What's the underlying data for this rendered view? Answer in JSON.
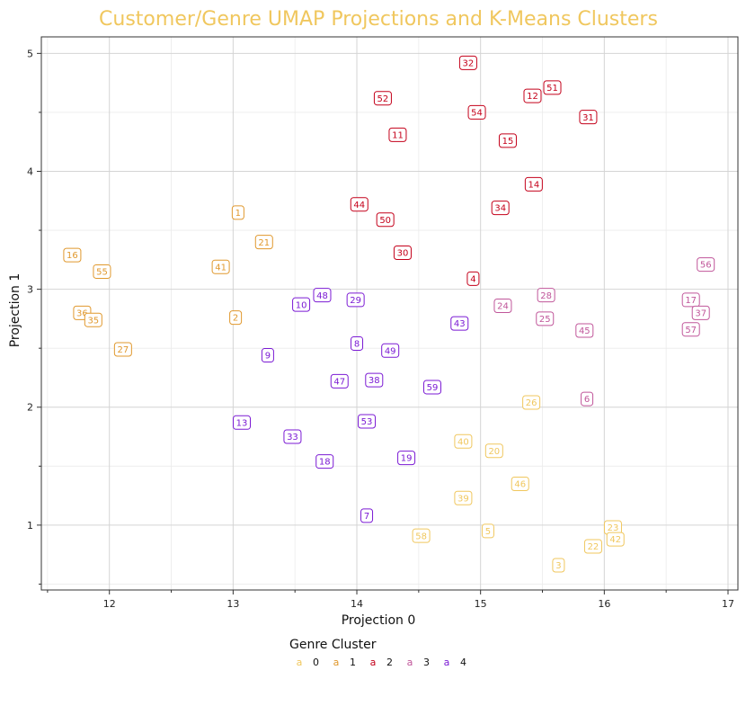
{
  "chart_data": {
    "type": "scatter",
    "title": "Customer/Genre UMAP Projections and K-Means Clusters",
    "xlabel": "Projection 0",
    "ylabel": "Projection 1",
    "xlim": [
      11.45,
      17.08
    ],
    "ylim": [
      0.45,
      5.14
    ],
    "xticks": [
      12,
      13,
      14,
      15,
      16,
      17
    ],
    "yticks": [
      1,
      2,
      3,
      4,
      5
    ],
    "xtick_labels": [
      "12",
      "13",
      "14",
      "15",
      "16",
      "17"
    ],
    "ytick_labels": [
      "1",
      "2",
      "3",
      "4",
      "5"
    ],
    "grid": true,
    "legend": {
      "title": "Genre Cluster",
      "position": "bottom",
      "marker_text": "a",
      "entries": [
        {
          "cluster": 0,
          "label": "0",
          "color": "#f0c75e"
        },
        {
          "cluster": 1,
          "label": "1",
          "color": "#e0982d"
        },
        {
          "cluster": 2,
          "label": "2",
          "color": "#c4001a"
        },
        {
          "cluster": 3,
          "label": "3",
          "color": "#c0569a"
        },
        {
          "cluster": 4,
          "label": "4",
          "color": "#7b1ad4"
        }
      ]
    },
    "points": [
      {
        "label": "32",
        "x": 14.9,
        "y": 4.92,
        "cluster": 2
      },
      {
        "label": "51",
        "x": 15.58,
        "y": 4.71,
        "cluster": 2
      },
      {
        "label": "12",
        "x": 15.42,
        "y": 4.64,
        "cluster": 2
      },
      {
        "label": "52",
        "x": 14.21,
        "y": 4.62,
        "cluster": 2
      },
      {
        "label": "54",
        "x": 14.97,
        "y": 4.5,
        "cluster": 2
      },
      {
        "label": "31",
        "x": 15.87,
        "y": 4.46,
        "cluster": 2
      },
      {
        "label": "11",
        "x": 14.33,
        "y": 4.31,
        "cluster": 2
      },
      {
        "label": "15",
        "x": 15.22,
        "y": 4.26,
        "cluster": 2
      },
      {
        "label": "14",
        "x": 15.43,
        "y": 3.89,
        "cluster": 2
      },
      {
        "label": "44",
        "x": 14.02,
        "y": 3.72,
        "cluster": 2
      },
      {
        "label": "34",
        "x": 15.16,
        "y": 3.69,
        "cluster": 2
      },
      {
        "label": "50",
        "x": 14.23,
        "y": 3.59,
        "cluster": 2
      },
      {
        "label": "30",
        "x": 14.37,
        "y": 3.31,
        "cluster": 2
      },
      {
        "label": "4",
        "x": 14.94,
        "y": 3.09,
        "cluster": 2
      },
      {
        "label": "1",
        "x": 13.04,
        "y": 3.65,
        "cluster": 1
      },
      {
        "label": "21",
        "x": 13.25,
        "y": 3.4,
        "cluster": 1
      },
      {
        "label": "16",
        "x": 11.7,
        "y": 3.29,
        "cluster": 1
      },
      {
        "label": "41",
        "x": 12.9,
        "y": 3.19,
        "cluster": 1
      },
      {
        "label": "55",
        "x": 11.94,
        "y": 3.15,
        "cluster": 1
      },
      {
        "label": "36",
        "x": 11.78,
        "y": 2.8,
        "cluster": 1
      },
      {
        "label": "35",
        "x": 11.87,
        "y": 2.74,
        "cluster": 1
      },
      {
        "label": "2",
        "x": 13.02,
        "y": 2.76,
        "cluster": 1
      },
      {
        "label": "27",
        "x": 12.11,
        "y": 2.49,
        "cluster": 1
      },
      {
        "label": "56",
        "x": 16.82,
        "y": 3.21,
        "cluster": 3
      },
      {
        "label": "28",
        "x": 15.53,
        "y": 2.95,
        "cluster": 3
      },
      {
        "label": "17",
        "x": 16.7,
        "y": 2.91,
        "cluster": 3
      },
      {
        "label": "24",
        "x": 15.18,
        "y": 2.86,
        "cluster": 3
      },
      {
        "label": "37",
        "x": 16.78,
        "y": 2.8,
        "cluster": 3
      },
      {
        "label": "25",
        "x": 15.52,
        "y": 2.75,
        "cluster": 3
      },
      {
        "label": "57",
        "x": 16.7,
        "y": 2.66,
        "cluster": 3
      },
      {
        "label": "45",
        "x": 15.84,
        "y": 2.65,
        "cluster": 3
      },
      {
        "label": "6",
        "x": 15.86,
        "y": 2.07,
        "cluster": 3
      },
      {
        "label": "48",
        "x": 13.72,
        "y": 2.95,
        "cluster": 4
      },
      {
        "label": "29",
        "x": 13.99,
        "y": 2.91,
        "cluster": 4
      },
      {
        "label": "10",
        "x": 13.55,
        "y": 2.87,
        "cluster": 4
      },
      {
        "label": "43",
        "x": 14.83,
        "y": 2.71,
        "cluster": 4
      },
      {
        "label": "8",
        "x": 14.0,
        "y": 2.54,
        "cluster": 4
      },
      {
        "label": "49",
        "x": 14.27,
        "y": 2.48,
        "cluster": 4
      },
      {
        "label": "9",
        "x": 13.28,
        "y": 2.44,
        "cluster": 4
      },
      {
        "label": "38",
        "x": 14.14,
        "y": 2.23,
        "cluster": 4
      },
      {
        "label": "47",
        "x": 13.86,
        "y": 2.22,
        "cluster": 4
      },
      {
        "label": "59",
        "x": 14.61,
        "y": 2.17,
        "cluster": 4
      },
      {
        "label": "13",
        "x": 13.07,
        "y": 1.87,
        "cluster": 4
      },
      {
        "label": "53",
        "x": 14.08,
        "y": 1.88,
        "cluster": 4
      },
      {
        "label": "33",
        "x": 13.48,
        "y": 1.75,
        "cluster": 4
      },
      {
        "label": "19",
        "x": 14.4,
        "y": 1.57,
        "cluster": 4
      },
      {
        "label": "18",
        "x": 13.74,
        "y": 1.54,
        "cluster": 4
      },
      {
        "label": "7",
        "x": 14.08,
        "y": 1.08,
        "cluster": 4
      },
      {
        "label": "26",
        "x": 15.41,
        "y": 2.04,
        "cluster": 0
      },
      {
        "label": "40",
        "x": 14.86,
        "y": 1.71,
        "cluster": 0
      },
      {
        "label": "20",
        "x": 15.11,
        "y": 1.63,
        "cluster": 0
      },
      {
        "label": "46",
        "x": 15.32,
        "y": 1.35,
        "cluster": 0
      },
      {
        "label": "39",
        "x": 14.86,
        "y": 1.23,
        "cluster": 0
      },
      {
        "label": "23",
        "x": 16.07,
        "y": 0.98,
        "cluster": 0
      },
      {
        "label": "5",
        "x": 15.06,
        "y": 0.95,
        "cluster": 0
      },
      {
        "label": "58",
        "x": 14.52,
        "y": 0.91,
        "cluster": 0
      },
      {
        "label": "42",
        "x": 16.09,
        "y": 0.88,
        "cluster": 0
      },
      {
        "label": "22",
        "x": 15.91,
        "y": 0.82,
        "cluster": 0
      },
      {
        "label": "3",
        "x": 15.63,
        "y": 0.66,
        "cluster": 0
      }
    ]
  },
  "colors": {
    "title": "#f0c75e",
    "grid_major": "#d4d4d4",
    "grid_minor": "#ebebeb",
    "axis_frame": "#333333"
  }
}
